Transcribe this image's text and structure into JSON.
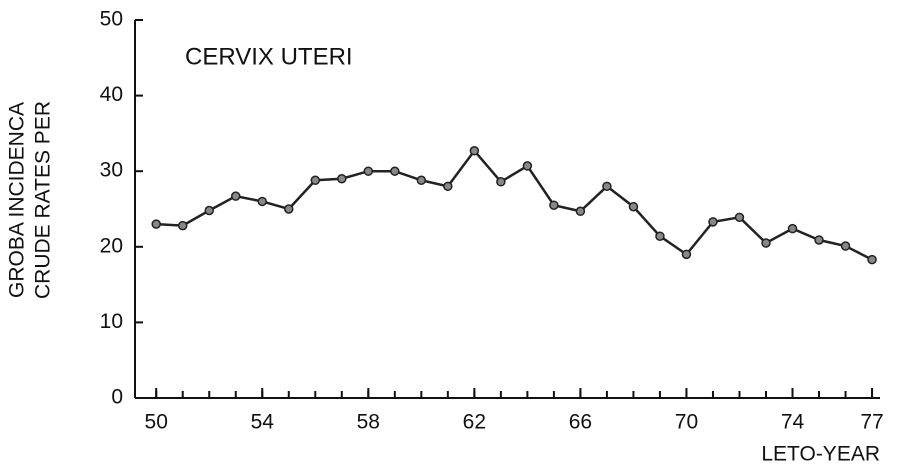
{
  "chart_data": {
    "type": "line",
    "title": "CERVIX UTERI",
    "y_label": [
      "GROBA INCIDENCA",
      "CRUDE RATES PER"
    ],
    "x_label": "LETO-YEAR",
    "x": [
      50,
      51,
      52,
      53,
      54,
      55,
      56,
      57,
      58,
      59,
      60,
      61,
      62,
      63,
      64,
      65,
      66,
      67,
      68,
      69,
      70,
      71,
      72,
      73,
      74,
      75,
      76,
      77
    ],
    "series": [
      {
        "color": "#222222",
        "values": [
          23,
          22.8,
          24.8,
          26.7,
          26,
          25,
          28.8,
          29,
          30,
          30,
          28.8,
          28,
          32.7,
          28.6,
          30.7,
          25.5,
          24.7,
          28,
          25.3,
          21.4,
          19,
          23.3,
          23.9,
          20.5,
          22.4,
          20.9,
          20.1,
          18.3
        ]
      }
    ],
    "xlim": [
      49.2,
      77.3
    ],
    "xticks": [
      50,
      54,
      58,
      62,
      66,
      70,
      74,
      77
    ],
    "ylim": [
      0,
      50
    ],
    "yticks": [
      0,
      10,
      20,
      30,
      40,
      50
    ]
  }
}
